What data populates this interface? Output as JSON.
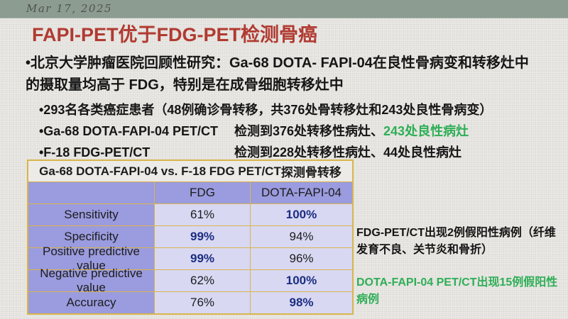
{
  "colors": {
    "topbar_green": "#8d9c90",
    "title_red": "#b13a31",
    "accent_green": "#2fae57",
    "highlight_navy": "#1c2d80",
    "table_purple": "#9b9bdf",
    "table_lavender": "#d8d8f3",
    "table_border_gold": "#d9b54a"
  },
  "topbar": {
    "date": "Mar 17, 2025"
  },
  "title": "FAPI-PET优于FDG-PET检测骨癌",
  "intro": {
    "line1": "•北京大学肿瘤医院回顾性研究：Ga-68 DOTA- FAPI-04在良性骨病变和转移灶中",
    "line2": "的摄取量均高于 FDG，特别是在成骨细胞转移灶中"
  },
  "bullets": {
    "patients": "•293名各类癌症患者（48例确诊骨转移，共376处骨转移灶和243处良性骨病变）",
    "fapi": {
      "label": "•Ga-68 DOTA-FAPI-04 PET/CT",
      "result_prefix": "检测到376处转移性病灶、",
      "result_highlight": "243处良性病灶"
    },
    "fdg": {
      "label": "•F-18 FDG-PET/CT",
      "result": "检测到228处转移性病灶、44处良性病灶"
    }
  },
  "table": {
    "title_en": "Ga-68 DOTA-FAPI-04 vs. F-18 FDG PET/CT",
    "title_zh": "探测骨转移",
    "columns": [
      "",
      "FDG",
      "DOTA-FAPI-04"
    ],
    "rows": [
      {
        "label": "Sensitivity",
        "fdg": "61%",
        "fapi": "100%",
        "fdg_bold": false,
        "fapi_bold": true
      },
      {
        "label": "Specificity",
        "fdg": "99%",
        "fapi": "94%",
        "fdg_bold": true,
        "fapi_bold": false
      },
      {
        "label": "Positive predictive value",
        "fdg": "99%",
        "fapi": "96%",
        "fdg_bold": true,
        "fapi_bold": false
      },
      {
        "label": "Negative predictive value",
        "fdg": "62%",
        "fapi": "100%",
        "fdg_bold": false,
        "fapi_bold": true
      },
      {
        "label": "Accuracy",
        "fdg": "76%",
        "fapi": "98%",
        "fdg_bold": false,
        "fapi_bold": true
      }
    ]
  },
  "notes": {
    "fdg": "FDG-PET/CT出现2例假阳性病例（纤维发育不良、关节炎和骨折）",
    "fapi": "DOTA-FAPI-04 PET/CT出现15例假阳性病例"
  }
}
